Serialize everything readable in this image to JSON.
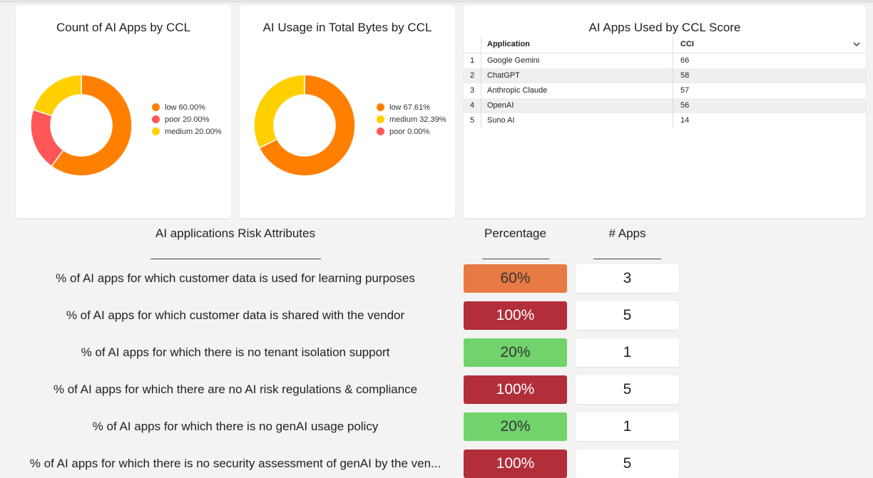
{
  "colors": {
    "low": "#ff8000",
    "poor": "#ff5757",
    "medium": "#ffd000",
    "red": "#b22e3a",
    "green": "#71d36c",
    "orange": "#e87a45"
  },
  "card1": {
    "title": "Count of AI Apps by CCL",
    "legend": [
      {
        "label": "low 60.00%",
        "color": "#ff8000"
      },
      {
        "label": "poor 20.00%",
        "color": "#ff5757"
      },
      {
        "label": "medium 20.00%",
        "color": "#ffd000"
      }
    ]
  },
  "card2": {
    "title": "AI Usage in Total Bytes by CCL",
    "legend": [
      {
        "label": "low 67.61%",
        "color": "#ff8000"
      },
      {
        "label": "medium 32.39%",
        "color": "#ffd000"
      },
      {
        "label": "poor 0.00%",
        "color": "#ff5757"
      }
    ]
  },
  "card3": {
    "title": "AI Apps Used by CCL Score",
    "col_app": "Application",
    "col_cci": "CCI",
    "rows": [
      {
        "idx": "1",
        "app": "Google Gemini",
        "cci": "66"
      },
      {
        "idx": "2",
        "app": "ChatGPT",
        "cci": "58"
      },
      {
        "idx": "3",
        "app": "Anthropic Claude",
        "cci": "57"
      },
      {
        "idx": "4",
        "app": "OpenAI",
        "cci": "56"
      },
      {
        "idx": "5",
        "app": "Suno AI",
        "cci": "14"
      }
    ]
  },
  "chart_data": [
    {
      "type": "pie",
      "title": "Count of AI Apps by CCL",
      "categories": [
        "low",
        "poor",
        "medium"
      ],
      "values": [
        60.0,
        20.0,
        20.0
      ]
    },
    {
      "type": "pie",
      "title": "AI Usage in Total Bytes by CCL",
      "categories": [
        "low",
        "medium",
        "poor"
      ],
      "values": [
        67.61,
        32.39,
        0.0
      ]
    }
  ],
  "risk": {
    "header_attr": "AI applications Risk Attributes",
    "header_pct": "Percentage",
    "header_apps": "# Apps",
    "rows": [
      {
        "label": "% of AI apps for which customer data is used for learning purposes",
        "pct": "60%",
        "apps": "3",
        "color": "#e87a45"
      },
      {
        "label": "% of AI apps for which customer data is shared with the vendor",
        "pct": "100%",
        "apps": "5",
        "color": "#b22e3a"
      },
      {
        "label": "% of AI apps for which there is no tenant isolation support",
        "pct": "20%",
        "apps": "1",
        "color": "#71d36c"
      },
      {
        "label": "% of AI apps for which there are no AI risk regulations & compliance",
        "pct": "100%",
        "apps": "5",
        "color": "#b22e3a"
      },
      {
        "label": "% of AI apps for which there is no genAI usage policy",
        "pct": "20%",
        "apps": "1",
        "color": "#71d36c"
      },
      {
        "label": "% of AI apps for which there is no security assessment of genAI by the ven...",
        "pct": "100%",
        "apps": "5",
        "color": "#b22e3a"
      }
    ]
  }
}
